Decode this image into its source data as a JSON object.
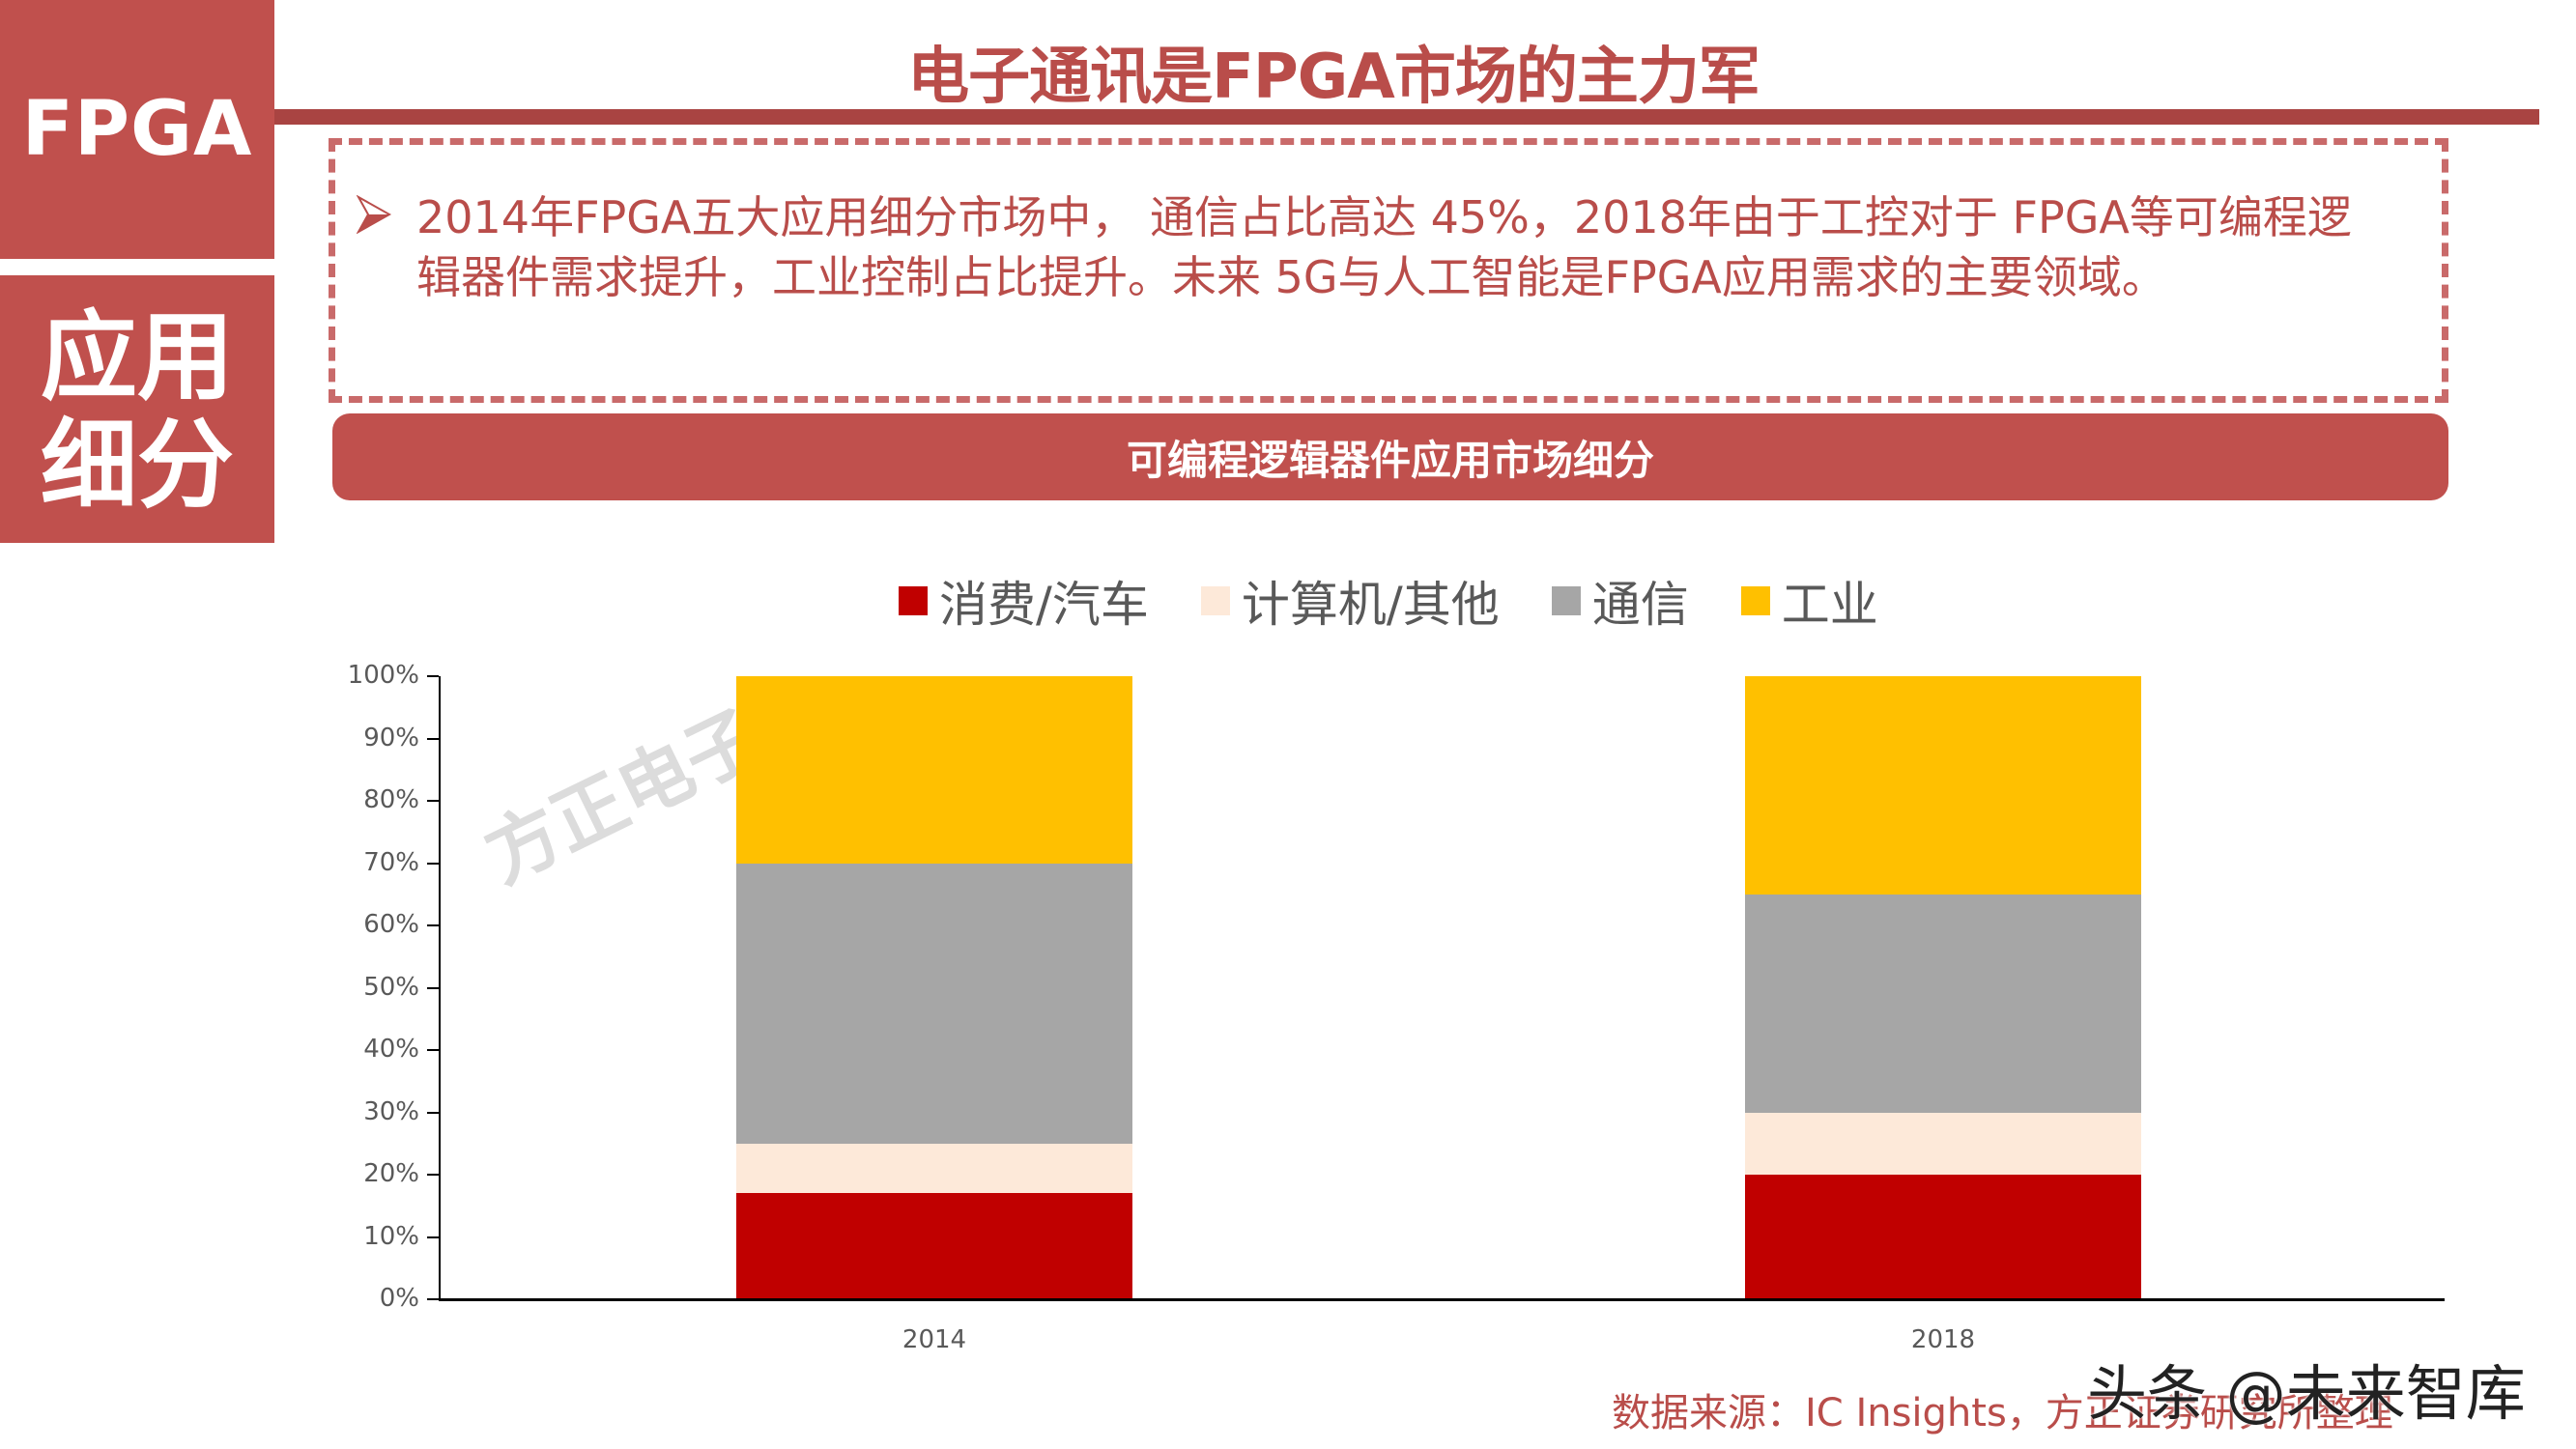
{
  "sidebar": {
    "tag_top": "FPGA",
    "tag_bottom_line1": "应用",
    "tag_bottom_line2": "细分"
  },
  "header": {
    "title": "电子通讯是FPGA市场的主力军"
  },
  "summary": {
    "bullet_icon": "arrow-bullet-icon",
    "text": "2014年FPGA五大应用细分市场中， 通信占比高达 45%，2018年由于工控对于 FPGA等可编程逻辑器件需求提升，工业控制占比提升。未来  5G与人工智能是FPGA应用需求的主要领域。"
  },
  "chart_banner": {
    "title": "可编程逻辑器件应用市场细分"
  },
  "legend": [
    {
      "label": "消费/汽车",
      "color": "#C00000"
    },
    {
      "label": "计算机/其他",
      "color": "#FDE9D9"
    },
    {
      "label": "通信",
      "color": "#A6A6A6"
    },
    {
      "label": "工业",
      "color": "#FFC000"
    }
  ],
  "y_axis": {
    "ticks": [
      "0%",
      "10%",
      "20%",
      "30%",
      "40%",
      "50%",
      "60%",
      "70%",
      "80%",
      "90%",
      "100%"
    ]
  },
  "x_axis": {
    "labels": [
      "2014",
      "2018"
    ]
  },
  "watermarks": {
    "chart": "方正电子",
    "corner": "头条 @未来智库"
  },
  "footer": {
    "source": "数据来源：IC Insights，方正证券研究所整理"
  },
  "colors": {
    "brand_red": "#C0504D",
    "title_red": "#B94D4A",
    "rule_red": "#A94442"
  },
  "chart_data": {
    "type": "bar",
    "stacked": true,
    "percent": true,
    "title": "可编程逻辑器件应用市场细分",
    "categories": [
      "2014",
      "2018"
    ],
    "series": [
      {
        "name": "消费/汽车",
        "color": "#C00000",
        "values": [
          17,
          20
        ]
      },
      {
        "name": "计算机/其他",
        "color": "#FDE9D9",
        "values": [
          8,
          10
        ]
      },
      {
        "name": "通信",
        "color": "#A6A6A6",
        "values": [
          45,
          35
        ]
      },
      {
        "name": "工业",
        "color": "#FFC000",
        "values": [
          30,
          35
        ]
      }
    ],
    "xlabel": "",
    "ylabel": "",
    "ylim": [
      0,
      100
    ],
    "yticks": [
      "0%",
      "10%",
      "20%",
      "30%",
      "40%",
      "50%",
      "60%",
      "70%",
      "80%",
      "90%",
      "100%"
    ],
    "grid": false,
    "legend_position": "top"
  }
}
